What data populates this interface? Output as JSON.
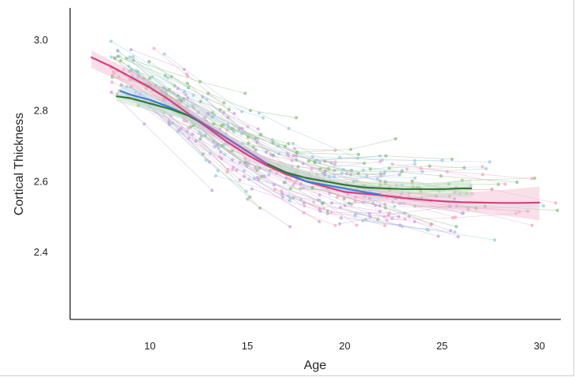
{
  "chart_data": {
    "type": "scatter",
    "title": "",
    "xlabel": "Age",
    "ylabel": "Cortical Thickness",
    "xlim": [
      5.9,
      31.1
    ],
    "ylim": [
      2.21,
      3.09
    ],
    "x_ticks": [
      10,
      15,
      20,
      25,
      30
    ],
    "y_ticks": [
      2.4,
      2.6,
      2.8,
      3.0
    ],
    "x_tick_labels": [
      "10",
      "15",
      "20",
      "25",
      "30"
    ],
    "y_tick_labels": [
      "2.4",
      "2.6",
      "2.8",
      "3.0"
    ],
    "grid": false,
    "legend": "none",
    "scatter_style": "individual longitudinal trajectories (faint points joined by thin lines)",
    "scatter_colors": [
      "#8ec07c",
      "#9ecae1",
      "#f4a6c4",
      "#c9a0dc"
    ],
    "series": [
      {
        "color": "#d6407f",
        "band_color": "#f2b8cf",
        "points": [
          [
            7,
            2.95
          ],
          [
            8,
            2.925
          ],
          [
            9,
            2.895
          ],
          [
            10,
            2.865
          ],
          [
            11,
            2.83
          ],
          [
            12,
            2.79
          ],
          [
            13,
            2.75
          ],
          [
            14,
            2.71
          ],
          [
            15,
            2.675
          ],
          [
            16,
            2.645
          ],
          [
            17,
            2.62
          ],
          [
            18,
            2.6
          ],
          [
            19,
            2.585
          ],
          [
            20,
            2.57
          ],
          [
            21,
            2.565
          ],
          [
            22,
            2.56
          ],
          [
            23,
            2.553
          ],
          [
            24,
            2.548
          ],
          [
            25,
            2.544
          ],
          [
            26,
            2.541
          ],
          [
            27,
            2.54
          ],
          [
            28,
            2.539
          ],
          [
            29,
            2.539
          ],
          [
            30,
            2.54
          ]
        ],
        "band_lower": [
          [
            7,
            2.92
          ],
          [
            10,
            2.845
          ],
          [
            15,
            2.66
          ],
          [
            20,
            2.555
          ],
          [
            25,
            2.52
          ],
          [
            28,
            2.505
          ],
          [
            30,
            2.49
          ]
        ],
        "band_upper": [
          [
            7,
            2.97
          ],
          [
            10,
            2.885
          ],
          [
            15,
            2.69
          ],
          [
            20,
            2.585
          ],
          [
            25,
            2.565
          ],
          [
            28,
            2.575
          ],
          [
            30,
            2.585
          ]
        ]
      },
      {
        "color": "#3a7fd1",
        "band_color": "#b7d0ef",
        "points": [
          [
            8.5,
            2.855
          ],
          [
            9,
            2.845
          ],
          [
            10,
            2.83
          ],
          [
            11,
            2.81
          ],
          [
            12,
            2.785
          ],
          [
            13,
            2.755
          ],
          [
            14,
            2.72
          ],
          [
            15,
            2.685
          ],
          [
            16,
            2.65
          ],
          [
            17,
            2.625
          ],
          [
            18,
            2.6
          ],
          [
            19,
            2.59
          ],
          [
            20,
            2.58
          ],
          [
            21,
            2.57
          ],
          [
            21.8,
            2.563
          ]
        ],
        "band_lower": [
          [
            8.5,
            2.835
          ],
          [
            12,
            2.77
          ],
          [
            16,
            2.64
          ],
          [
            20,
            2.57
          ],
          [
            21.8,
            2.548
          ]
        ],
        "band_upper": [
          [
            8.5,
            2.875
          ],
          [
            12,
            2.8
          ],
          [
            16,
            2.66
          ],
          [
            20,
            2.59
          ],
          [
            21.8,
            2.578
          ]
        ]
      },
      {
        "color": "#2f7a2f",
        "band_color": "#c4dec0",
        "points": [
          [
            8.3,
            2.84
          ],
          [
            9,
            2.835
          ],
          [
            10,
            2.82
          ],
          [
            11,
            2.805
          ],
          [
            12,
            2.785
          ],
          [
            13,
            2.755
          ],
          [
            14,
            2.72
          ],
          [
            15,
            2.685
          ],
          [
            16,
            2.65
          ],
          [
            17,
            2.625
          ],
          [
            18,
            2.61
          ],
          [
            19,
            2.6
          ],
          [
            20,
            2.59
          ],
          [
            21,
            2.583
          ],
          [
            22,
            2.58
          ],
          [
            23,
            2.578
          ],
          [
            24,
            2.578
          ],
          [
            25,
            2.578
          ],
          [
            26,
            2.58
          ],
          [
            26.5,
            2.58
          ]
        ],
        "band_lower": [
          [
            8.3,
            2.825
          ],
          [
            12,
            2.772
          ],
          [
            16,
            2.64
          ],
          [
            20,
            2.578
          ],
          [
            24,
            2.562
          ],
          [
            26.5,
            2.555
          ]
        ],
        "band_upper": [
          [
            8.3,
            2.855
          ],
          [
            12,
            2.798
          ],
          [
            16,
            2.66
          ],
          [
            20,
            2.602
          ],
          [
            24,
            2.594
          ],
          [
            26.5,
            2.605
          ]
        ]
      },
      {
        "color": "#a05fb8",
        "band_color": "#dcc3e6",
        "points": [
          [
            12,
            2.79
          ],
          [
            13,
            2.755
          ],
          [
            14,
            2.72
          ],
          [
            15,
            2.685
          ],
          [
            16,
            2.65
          ]
        ],
        "band_lower": [
          [
            12,
            2.778
          ],
          [
            14,
            2.708
          ],
          [
            16,
            2.635
          ]
        ],
        "band_upper": [
          [
            12,
            2.802
          ],
          [
            14,
            2.732
          ],
          [
            16,
            2.665
          ]
        ]
      }
    ]
  }
}
